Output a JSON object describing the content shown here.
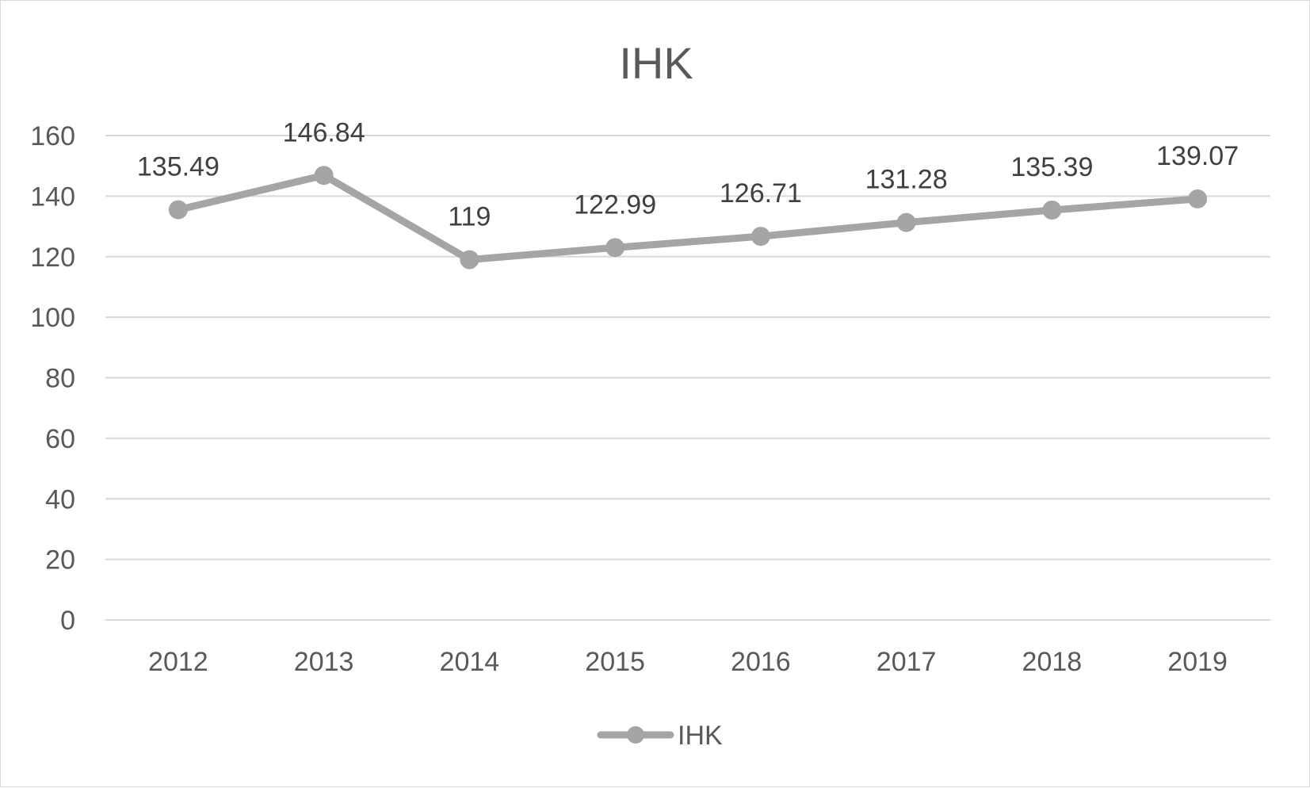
{
  "chart_data": {
    "type": "line",
    "title": "IHK",
    "xlabel": "",
    "ylabel": "",
    "categories": [
      "2012",
      "2013",
      "2014",
      "2015",
      "2016",
      "2017",
      "2018",
      "2019"
    ],
    "series": [
      {
        "name": "IHK",
        "values": [
          135.49,
          146.84,
          119,
          122.99,
          126.71,
          131.28,
          135.39,
          139.07
        ],
        "labels": [
          "135.49",
          "146.84",
          "119",
          "122.99",
          "126.71",
          "131.28",
          "135.39",
          "139.07"
        ],
        "color": "#a5a5a5"
      }
    ],
    "ylim": [
      0,
      160
    ],
    "yticks": [
      "0",
      "20",
      "40",
      "60",
      "80",
      "100",
      "120",
      "140",
      "160"
    ],
    "grid": true,
    "legend": "bottom",
    "markers": "circle"
  },
  "colors": {
    "gridline": "#d9d9d9",
    "text": "#595959",
    "data_label": "#404040"
  }
}
